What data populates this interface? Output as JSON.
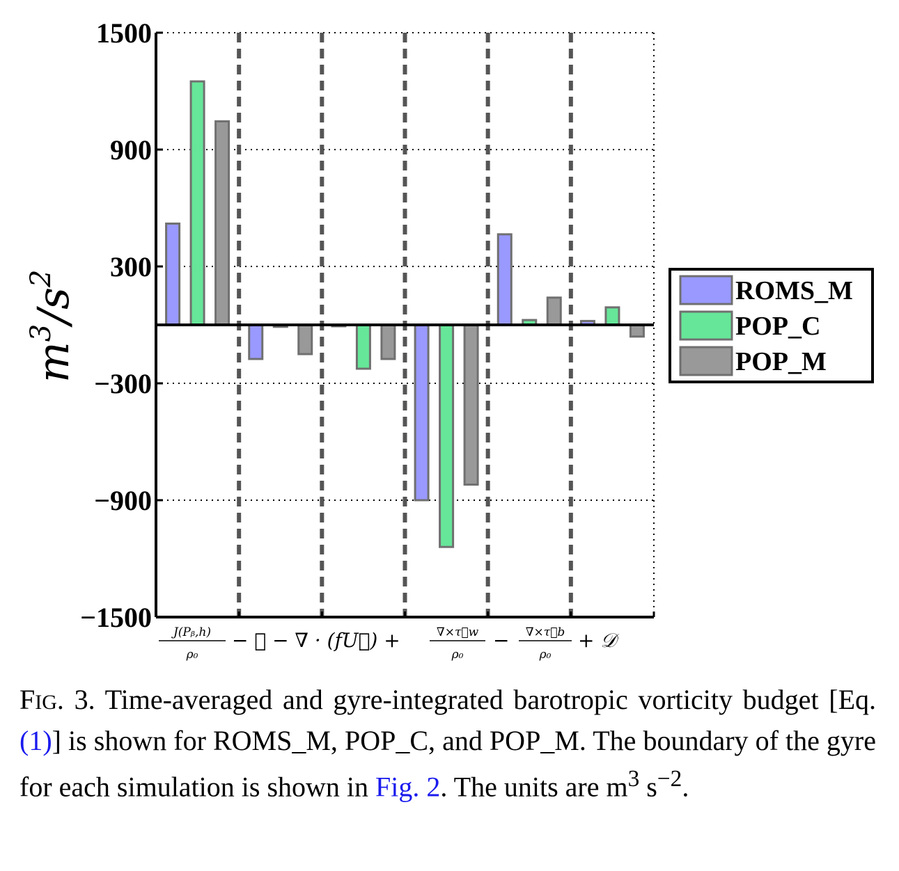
{
  "chart_data": {
    "type": "bar",
    "ylabel": "m^3/s^2",
    "ylim": [
      -1500,
      1500
    ],
    "yticks": [
      1500,
      900,
      300,
      -300,
      -900,
      -1500
    ],
    "ytick_labels": [
      "1500",
      "900",
      "300",
      "−300",
      "−900",
      "−1500"
    ],
    "xlabel": "J(P_b,h)/ρ₀ − 𝒜 − ∇·(fU) + ∇×τ_w/ρ₀ − ∇×τ_b/ρ₀ + 𝒟",
    "xlabel_parts": {
      "jac_num": "J(Pᵦ,h)",
      "jac_den": "ρ₀",
      "adv": "− 𝒜 − ∇ · (fU⃗) +",
      "wind_num": "∇×τ⃗w",
      "wind_den": "ρ₀",
      "minus": "−",
      "bot_num": "∇×τ⃗b",
      "bot_den": "ρ₀",
      "diss": "+ 𝒟"
    },
    "categories": [
      "J(P_b,h)/ρ₀",
      "−𝒜",
      "−∇·(fU)",
      "∇×τ_w/ρ₀",
      "−∇×τ_b/ρ₀",
      "𝒟"
    ],
    "series": [
      {
        "name": "ROMS_M",
        "color": "#9999ff",
        "values": [
          520,
          -175,
          0,
          -900,
          465,
          20
        ]
      },
      {
        "name": "POP_C",
        "color": "#66e699",
        "values": [
          1250,
          -10,
          -225,
          -1140,
          25,
          90
        ]
      },
      {
        "name": "POP_M",
        "color": "#999999",
        "values": [
          1045,
          -150,
          -175,
          -820,
          140,
          -60
        ]
      }
    ],
    "grid": true,
    "legend_position": "right"
  },
  "caption": {
    "fig_prefix_F": "F",
    "fig_prefix_rest": "IG",
    "fig_num": ". 3.",
    "text1": " Time-averaged and gyre-integrated barotropic vorticity budget [Eq. ",
    "eq_link": "(1)",
    "text2": "] is shown for ROMS_M, POP_C, and POP_M. The boundary of the gyre for each simulation is shown in ",
    "fig_link": "Fig. 2",
    "text3": ". The units are m",
    "sup1": "3",
    "text4": " s",
    "sup2": "−2",
    "text5": "."
  }
}
